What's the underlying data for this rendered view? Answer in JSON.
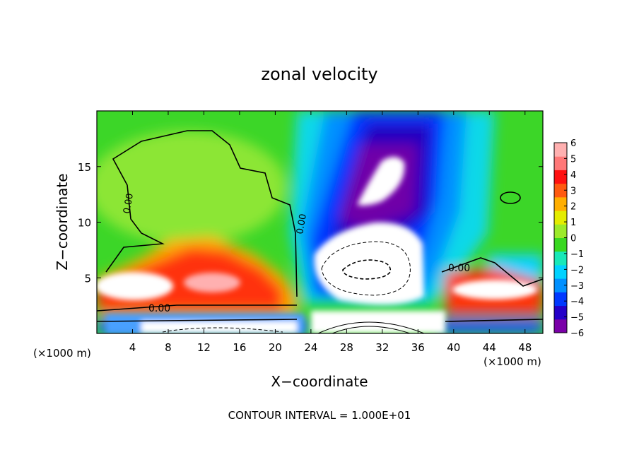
{
  "chart_data": {
    "type": "heatmap",
    "title": "zonal velocity",
    "xlabel": "X−coordinate",
    "ylabel": "Z−coordinate",
    "x_unit_left": "(×1000 m)",
    "x_unit_right": "(×1000 m)",
    "xlim": [
      0,
      50
    ],
    "ylim": [
      0,
      20
    ],
    "x_ticks": [
      4,
      8,
      12,
      16,
      20,
      24,
      28,
      32,
      36,
      40,
      44,
      48
    ],
    "y_ticks": [
      5,
      10,
      15
    ],
    "footer": "CONTOUR INTERVAL = 1.000E+01",
    "contour_labels": [
      "0.00",
      "0.00",
      "0.00",
      "0.00"
    ],
    "colorbar": {
      "min": -6,
      "max": 6,
      "tick_labels": [
        "6",
        "5",
        "4",
        "3",
        "2",
        "1",
        "0",
        "−1",
        "−2",
        "−3",
        "−4",
        "−5",
        "−6"
      ],
      "colors": [
        "#7a00a8",
        "#2400c8",
        "#0038ff",
        "#0090ff",
        "#00d2ff",
        "#18e8b8",
        "#38d820",
        "#9cea2a",
        "#e4ec00",
        "#ffae00",
        "#ff5a10",
        "#ff1010",
        "#ff7878",
        "#ffb0b0"
      ]
    },
    "features": [
      {
        "kind": "positive_max",
        "x": 5,
        "z": 3,
        "value": 6
      },
      {
        "kind": "positive_max",
        "x": 45,
        "z": 3.5,
        "value": 6
      },
      {
        "kind": "negative_min",
        "x": 31,
        "z": 6,
        "value": -6
      },
      {
        "kind": "negative_min",
        "x": 33,
        "z": 13.5,
        "value": -6
      },
      {
        "kind": "weak_positive",
        "x": 10,
        "z": 14,
        "value": 0.5
      }
    ]
  }
}
